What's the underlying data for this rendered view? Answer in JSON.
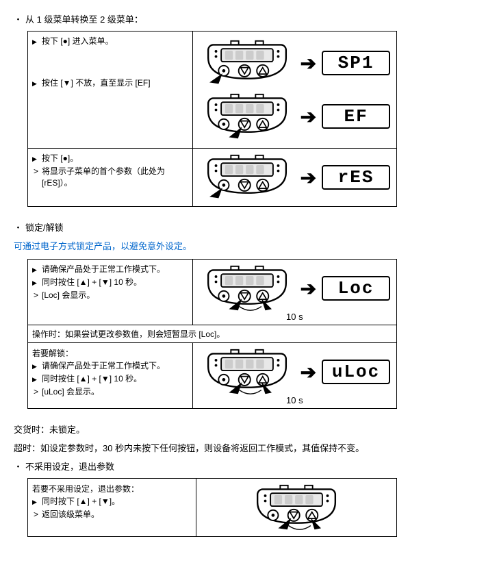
{
  "section1": {
    "heading": "从 1 级菜单转换至 2 级菜单：",
    "rows": [
      {
        "steps": [
          {
            "type": "tri",
            "text": "按下 [●] 进入菜单。"
          },
          {
            "type": "spacer"
          },
          {
            "type": "tri",
            "text": "按住 [▼] 不放，直至显示 [EF]"
          }
        ],
        "displays": [
          "SP1",
          "EF"
        ],
        "press": [
          "enter",
          "down"
        ]
      },
      {
        "steps": [
          {
            "type": "tri",
            "text": "按下 [●]。"
          },
          {
            "type": "gt",
            "text": "将显示子菜单的首个参数（此处为 [rES]）。"
          }
        ],
        "displays": [
          "rES"
        ],
        "press": [
          "enter"
        ]
      }
    ]
  },
  "section2": {
    "heading": "锁定/解锁",
    "intro": "可通过电子方式锁定产品，以避免意外设定。",
    "rows": [
      {
        "steps": [
          {
            "type": "tri",
            "text": "请确保产品处于正常工作模式下。"
          },
          {
            "type": "tri",
            "text": "同时按住 [▲] + [▼] 10 秒。"
          },
          {
            "type": "gt",
            "text": "[Loc] 会显示。"
          }
        ],
        "display": "Loc",
        "timer": "10 s",
        "press": "both"
      }
    ],
    "note": "操作时：如果尝试更改参数值，则会短暂显示 [Loc]。",
    "unlock_label": "若要解锁：",
    "rows2": [
      {
        "steps": [
          {
            "type": "tri",
            "text": "请确保产品处于正常工作模式下。"
          },
          {
            "type": "tri",
            "text": "同时按住 [▲] + [▼] 10 秒。"
          },
          {
            "type": "gt",
            "text": "[uLoc] 会显示。"
          }
        ],
        "display": "uLoc",
        "timer": "10 s",
        "press": "both"
      }
    ],
    "delivery": "交货时：未锁定。",
    "timeout": "超时：如设定参数时，30 秒内未按下任何按钮，则设备将返回工作模式，其值保持不变。"
  },
  "section3": {
    "heading": "不采用设定，退出参数",
    "label": "若要不采用设定，退出参数：",
    "rows": [
      {
        "steps": [
          {
            "type": "tri",
            "text": "同时按下 [▲] + [▼]。"
          },
          {
            "type": "gt",
            "text": "返回该级菜单。"
          }
        ],
        "press": "both"
      }
    ]
  },
  "svg": {
    "body_fill": "#ffffff",
    "stroke": "#000000",
    "display_fill": "#e8e8e8"
  }
}
